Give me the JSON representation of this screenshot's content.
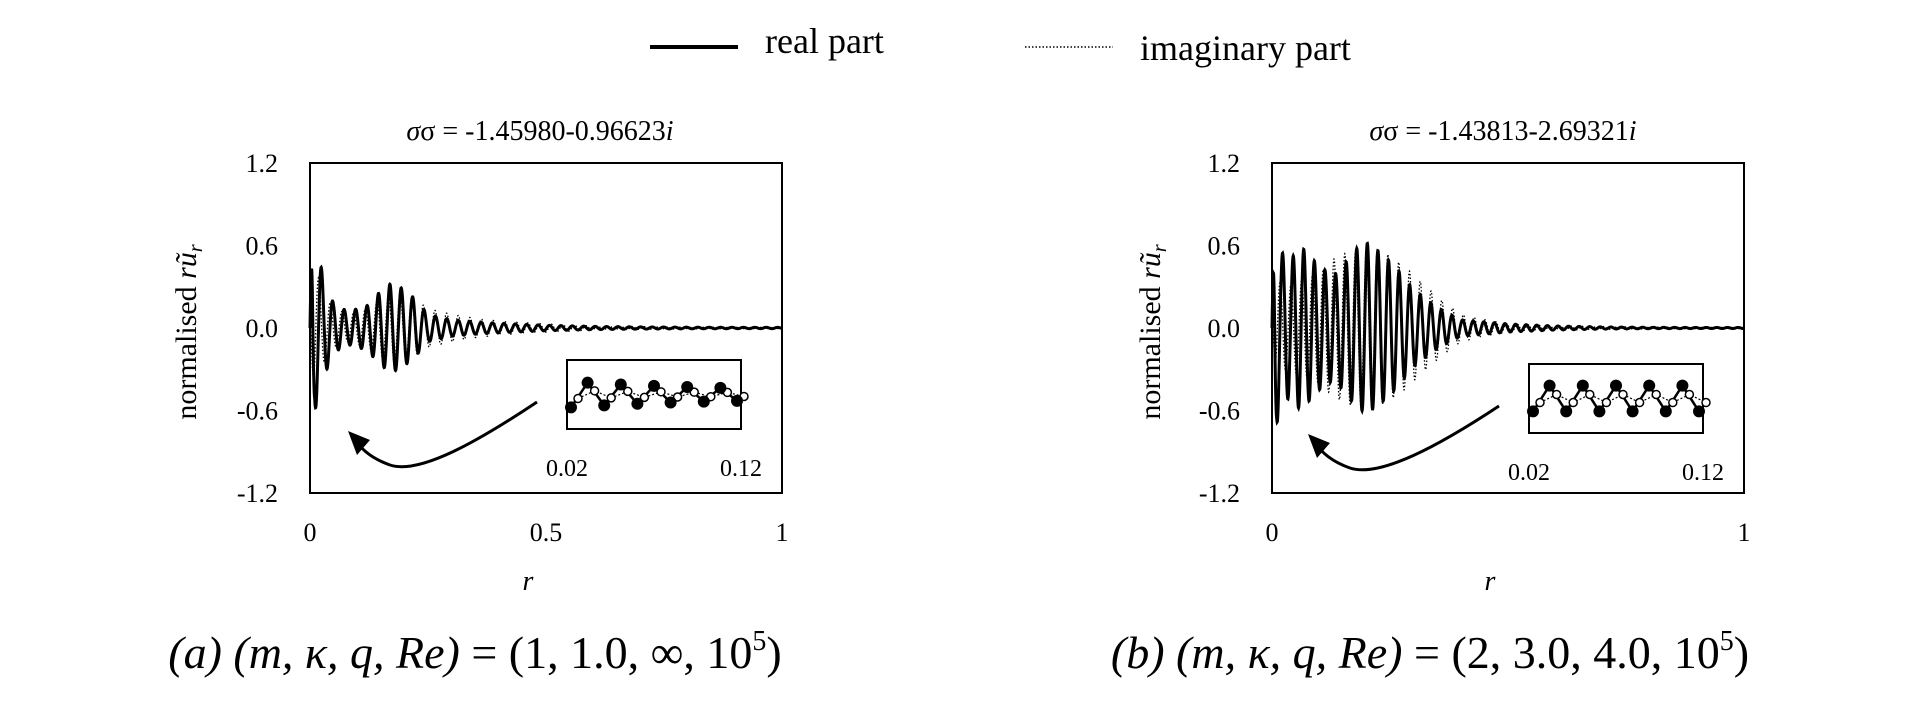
{
  "legend": {
    "real_label": "real part",
    "imag_label": "imaginary part",
    "placement": "top-center"
  },
  "colors": {
    "line": "#000000",
    "background": "#ffffff"
  },
  "chart_data": [
    {
      "type": "line",
      "panel": "a",
      "title_prefix": "σ = ",
      "title_value": "-1.45980-0.96623",
      "title_suffix": "i",
      "ylabel_text": "normalised ",
      "ylabel_math": "rũ",
      "ylabel_sub": "r",
      "xlabel": "r",
      "xlim": [
        0,
        1
      ],
      "ylim": [
        -1.2,
        1.2
      ],
      "xticks": [
        0,
        0.5,
        1
      ],
      "xtick_labels": [
        "0",
        "0.5",
        "1"
      ],
      "yticks": [
        1.2,
        0.6,
        0.0,
        -0.6,
        -1.2
      ],
      "ytick_labels": [
        "1.2",
        "0.6",
        "0.0",
        "-0.6",
        "-1.2"
      ],
      "grid": false,
      "caption_prefix": "(a)",
      "caption_vars": "(m, κ, q, Re)",
      "caption_values": "= (1, 1.0, ∞, 10",
      "caption_exp": "5",
      "caption_close": ")",
      "inset": {
        "xlim_labels": [
          "0.02",
          "0.12"
        ]
      },
      "series": [
        {
          "name": "real part",
          "x": [
            0,
            0.005,
            0.01,
            0.015,
            0.02,
            0.03,
            0.05,
            0.08,
            0.12,
            0.15,
            0.17,
            0.19,
            0.22,
            0.25,
            0.3,
            0.35,
            0.4,
            0.5,
            0.6,
            0.7,
            0.8,
            0.9,
            1.0
          ],
          "envelope": [
            0.0,
            1.0,
            0.6,
            0.55,
            0.5,
            0.35,
            0.18,
            0.12,
            0.16,
            0.27,
            0.32,
            0.3,
            0.22,
            0.1,
            0.06,
            0.045,
            0.035,
            0.02,
            0.012,
            0.008,
            0.006,
            0.005,
            0.005
          ]
        },
        {
          "name": "imaginary part",
          "x": [
            0,
            0.005,
            0.01,
            0.02,
            0.03,
            0.05,
            0.08,
            0.12,
            0.15,
            0.18,
            0.22,
            0.25,
            0.3,
            0.35,
            0.4,
            0.5,
            0.6,
            0.7,
            0.8,
            0.9,
            1.0
          ],
          "envelope": [
            0.0,
            0.3,
            0.45,
            0.35,
            0.25,
            0.15,
            0.1,
            0.14,
            0.22,
            0.26,
            0.22,
            0.14,
            0.1,
            0.07,
            0.05,
            0.03,
            0.015,
            0.01,
            0.006,
            0.005,
            0.004
          ]
        }
      ]
    },
    {
      "type": "line",
      "panel": "b",
      "title_prefix": "σ = ",
      "title_value": "-1.43813-2.69321",
      "title_suffix": "i",
      "ylabel_text": "normalised ",
      "ylabel_math": "rũ",
      "ylabel_sub": "r",
      "xlabel": "r",
      "xlim": [
        0,
        1
      ],
      "ylim": [
        -1.2,
        1.2
      ],
      "xticks": [
        0,
        1
      ],
      "xtick_labels": [
        "0",
        "1"
      ],
      "yticks": [
        1.2,
        0.6,
        0.0,
        -0.6,
        -1.2
      ],
      "ytick_labels": [
        "1.2",
        "0.6",
        "0.0",
        "-0.6",
        "-1.2"
      ],
      "grid": false,
      "caption_prefix": "(b)",
      "caption_vars": "(m, κ, q, Re)",
      "caption_values": "= (2, 3.0, 4.0, 10",
      "caption_exp": "5",
      "caption_close": ")",
      "inset": {
        "xlim_labels": [
          "0.02",
          "0.12"
        ]
      },
      "series": [
        {
          "name": "real part",
          "x": [
            0,
            0.005,
            0.01,
            0.02,
            0.04,
            0.06,
            0.1,
            0.13,
            0.15,
            0.18,
            0.2,
            0.23,
            0.26,
            0.3,
            0.35,
            0.4,
            0.5,
            0.6,
            0.7,
            0.8,
            0.9,
            1.0
          ],
          "envelope": [
            0.0,
            1.0,
            0.7,
            0.55,
            0.5,
            0.6,
            0.45,
            0.38,
            0.45,
            0.58,
            0.62,
            0.55,
            0.45,
            0.28,
            0.15,
            0.06,
            0.03,
            0.015,
            0.008,
            0.005,
            0.004,
            0.004
          ]
        },
        {
          "name": "imaginary part",
          "x": [
            0,
            0.01,
            0.03,
            0.06,
            0.1,
            0.13,
            0.16,
            0.2,
            0.24,
            0.28,
            0.32,
            0.36,
            0.4,
            0.45,
            0.5,
            0.6,
            0.7,
            0.8,
            0.9,
            1.0
          ],
          "envelope": [
            0.0,
            0.35,
            0.3,
            0.35,
            0.4,
            0.5,
            0.55,
            0.58,
            0.55,
            0.45,
            0.32,
            0.2,
            0.1,
            0.06,
            0.03,
            0.015,
            0.01,
            0.006,
            0.005,
            0.004
          ]
        }
      ]
    }
  ]
}
